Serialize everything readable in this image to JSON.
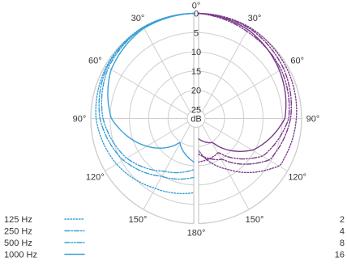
{
  "chart_data": [
    {
      "type": "polar-line",
      "side": "left",
      "radial_axis": {
        "unit": "dB",
        "ticks": [
          0,
          5,
          10,
          15,
          20,
          25
        ],
        "range": [
          0,
          25
        ]
      },
      "angle_labels": {
        "top": "0°",
        "bottom": "180°",
        "left": [
          "30°",
          "60°",
          "90°",
          "120°",
          "150°"
        ],
        "right": [
          "30°",
          "60°",
          "90°",
          "120°",
          "150°"
        ]
      },
      "legend": [
        "125 Hz",
        "250 Hz",
        "500 Hz",
        "1000 Hz"
      ],
      "series": [
        {
          "name": "125 Hz",
          "color": "#3aa0d6",
          "dash": "dotted",
          "angles_deg": [
            0,
            30,
            60,
            90,
            120,
            150,
            180
          ],
          "atten_db": [
            0,
            0.2,
            1.0,
            2.0,
            4.0,
            6.5,
            8.0
          ]
        },
        {
          "name": "250 Hz",
          "color": "#3aa0d6",
          "dash": "dashdot",
          "angles_deg": [
            0,
            30,
            60,
            90,
            120,
            150,
            180
          ],
          "atten_db": [
            0,
            0.3,
            1.2,
            3.0,
            6.0,
            10.0,
            12.0
          ]
        },
        {
          "name": "500 Hz",
          "color": "#3aa0d6",
          "dash": "dashdotdot",
          "angles_deg": [
            0,
            30,
            60,
            90,
            120,
            150,
            180
          ],
          "atten_db": [
            0,
            0.4,
            1.6,
            3.8,
            7.0,
            11.5,
            14.0
          ]
        },
        {
          "name": "1000 Hz",
          "color": "#3aa0d6",
          "dash": "solid",
          "angles_deg": [
            0,
            30,
            60,
            90,
            120,
            150,
            180
          ],
          "atten_db": [
            0,
            0.6,
            2.5,
            6.0,
            13.0,
            20.0,
            16.0
          ]
        }
      ]
    },
    {
      "type": "polar-line",
      "side": "right",
      "legend_visible": [
        "2",
        "4",
        "8",
        "16"
      ],
      "series": [
        {
          "name": "2",
          "color": "#7a3b8a",
          "dash": "dotted",
          "angles_deg": [
            0,
            30,
            60,
            90,
            120,
            150,
            180
          ],
          "atten_db": [
            0,
            0.2,
            1.0,
            2.0,
            3.0,
            12.0,
            19.0
          ]
        },
        {
          "name": "4",
          "color": "#7a3b8a",
          "dash": "dashdot",
          "angles_deg": [
            0,
            30,
            60,
            90,
            120,
            150,
            180
          ],
          "atten_db": [
            0,
            0.5,
            1.8,
            3.5,
            6.0,
            15.0,
            18.0
          ]
        },
        {
          "name": "8",
          "color": "#7a3b8a",
          "dash": "dashdotdot",
          "angles_deg": [
            0,
            30,
            60,
            90,
            120,
            150,
            180
          ],
          "atten_db": [
            0,
            1.5,
            2.5,
            4.0,
            8.0,
            17.0,
            16.0
          ]
        },
        {
          "name": "16",
          "color": "#7a3b8a",
          "dash": "solid",
          "angles_deg": [
            0,
            30,
            60,
            90,
            120,
            150,
            180
          ],
          "atten_db": [
            0,
            1.0,
            3.0,
            5.0,
            11.0,
            20.0,
            22.0
          ]
        }
      ]
    }
  ]
}
